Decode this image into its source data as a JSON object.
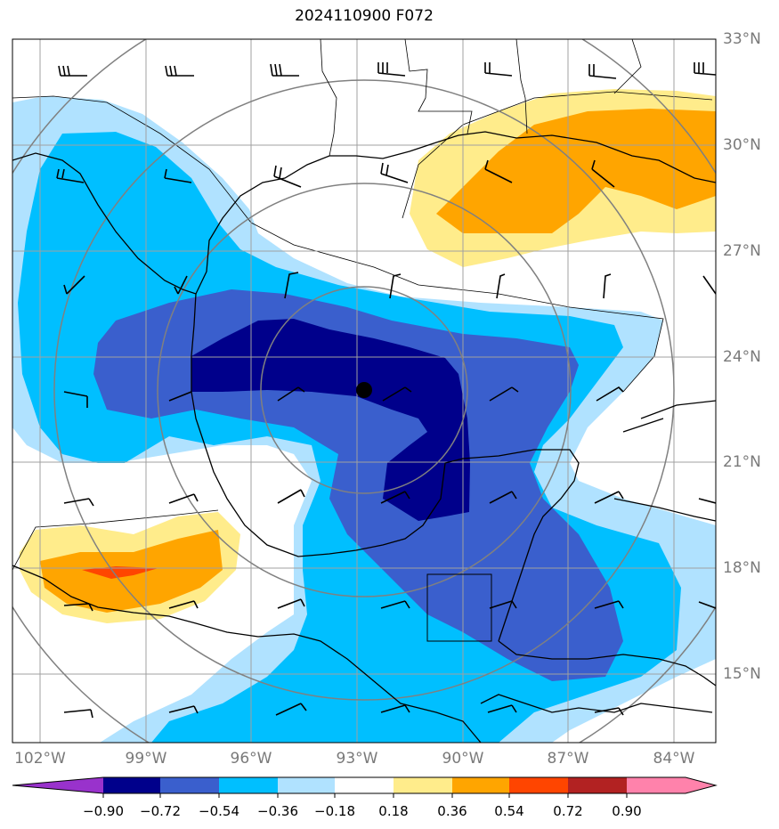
{
  "title": "2024110900 F072",
  "lat_labels": [
    "33°N",
    "30°N",
    "27°N",
    "24°N",
    "21°N",
    "18°N",
    "15°N"
  ],
  "lon_labels": [
    "102°W",
    "99°W",
    "96°W",
    "93°W",
    "90°W",
    "87°W",
    "84°W"
  ],
  "colorbar": {
    "ticks": [
      "−0.90",
      "−0.72",
      "−0.54",
      "−0.36",
      "−0.18",
      "0.18",
      "0.36",
      "0.54",
      "0.72",
      "0.90"
    ],
    "colors": [
      "#9932cc",
      "#00008b",
      "#3a5fcd",
      "#00bfff",
      "#b0e2ff",
      "#ffffff",
      "#ffec8b",
      "#ffa500",
      "#ff4500",
      "#b22222",
      "#ff82ab"
    ]
  },
  "fill_colors": {
    "n090": "#00008b",
    "n072": "#3a5fcd",
    "n054": "#00bfff",
    "n036": "#b0e2ff",
    "p036": "#ffec8b",
    "p054": "#ffa500",
    "p072": "#ff4500"
  },
  "center_marker": "storm-center"
}
